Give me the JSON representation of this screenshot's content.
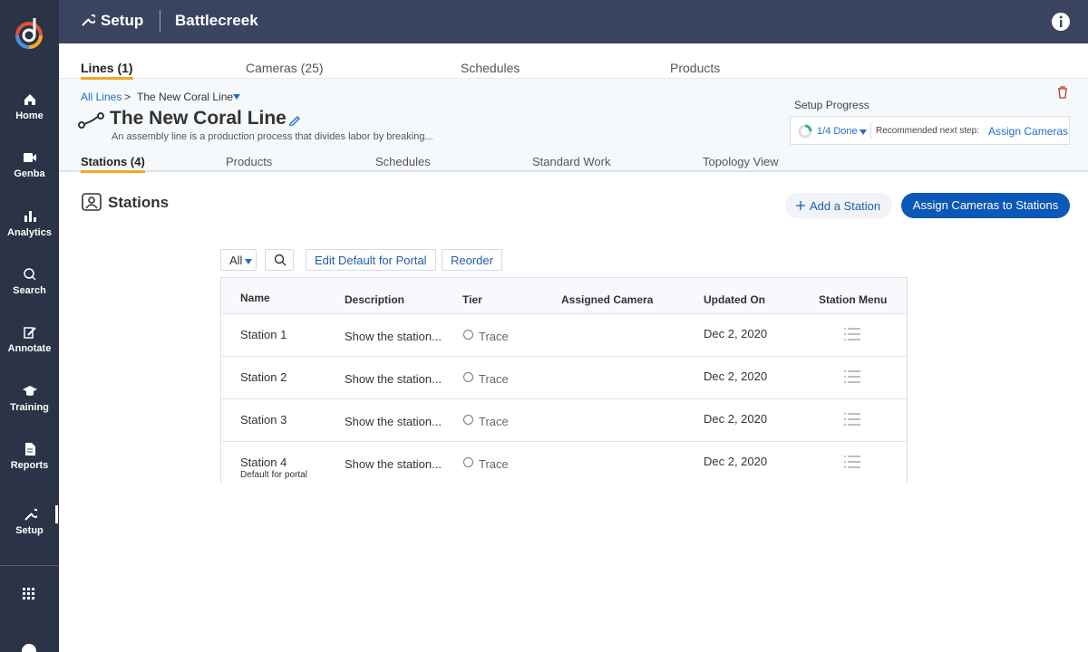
{
  "sidebar": {
    "items": [
      "Home",
      "Genba",
      "Analytics",
      "Search",
      "Annotate",
      "Training",
      "Reports",
      "Setup"
    ]
  },
  "header": {
    "title": "Setup",
    "org": "Battlecreek"
  },
  "top_tabs": [
    "Lines (1)",
    "Cameras (25)",
    "Schedules",
    "Products"
  ],
  "breadcrumb": {
    "root": "All Lines",
    "separator": ">",
    "current": "The New Coral Line"
  },
  "line": {
    "title": "The New Coral Line",
    "description": "An assembly line is a production process that divides labor by breaking..."
  },
  "progress": {
    "label": "Setup Progress",
    "status": "1/4 Done",
    "next_label": "Recommended next step:",
    "next_action": "Assign Cameras"
  },
  "sub_tabs": [
    "Stations (4)",
    "Products",
    "Schedules",
    "Standard Work",
    "Topology View"
  ],
  "section": {
    "title": "Stations",
    "add_button": "Add a Station",
    "assign_button": "Assign Cameras to Stations"
  },
  "toolbar": {
    "filter": "All",
    "edit_default": "Edit Default for Portal",
    "reorder": "Reorder"
  },
  "table": {
    "columns": [
      "Name",
      "Description",
      "Tier",
      "Assigned Camera",
      "Updated On",
      "Station Menu"
    ],
    "rows": [
      {
        "name": "Station 1",
        "description": "Show the station...",
        "tier": "Trace",
        "updated": "Dec 2, 2020"
      },
      {
        "name": "Station 2",
        "description": "Show the station...",
        "tier": "Trace",
        "updated": "Dec 2, 2020"
      },
      {
        "name": "Station 3",
        "description": "Show the station...",
        "tier": "Trace",
        "updated": "Dec 2, 2020"
      },
      {
        "name": "Station 4",
        "note": "Default for portal",
        "description": "Show the station...",
        "tier": "Trace",
        "updated": "Dec 2, 2020"
      }
    ]
  }
}
